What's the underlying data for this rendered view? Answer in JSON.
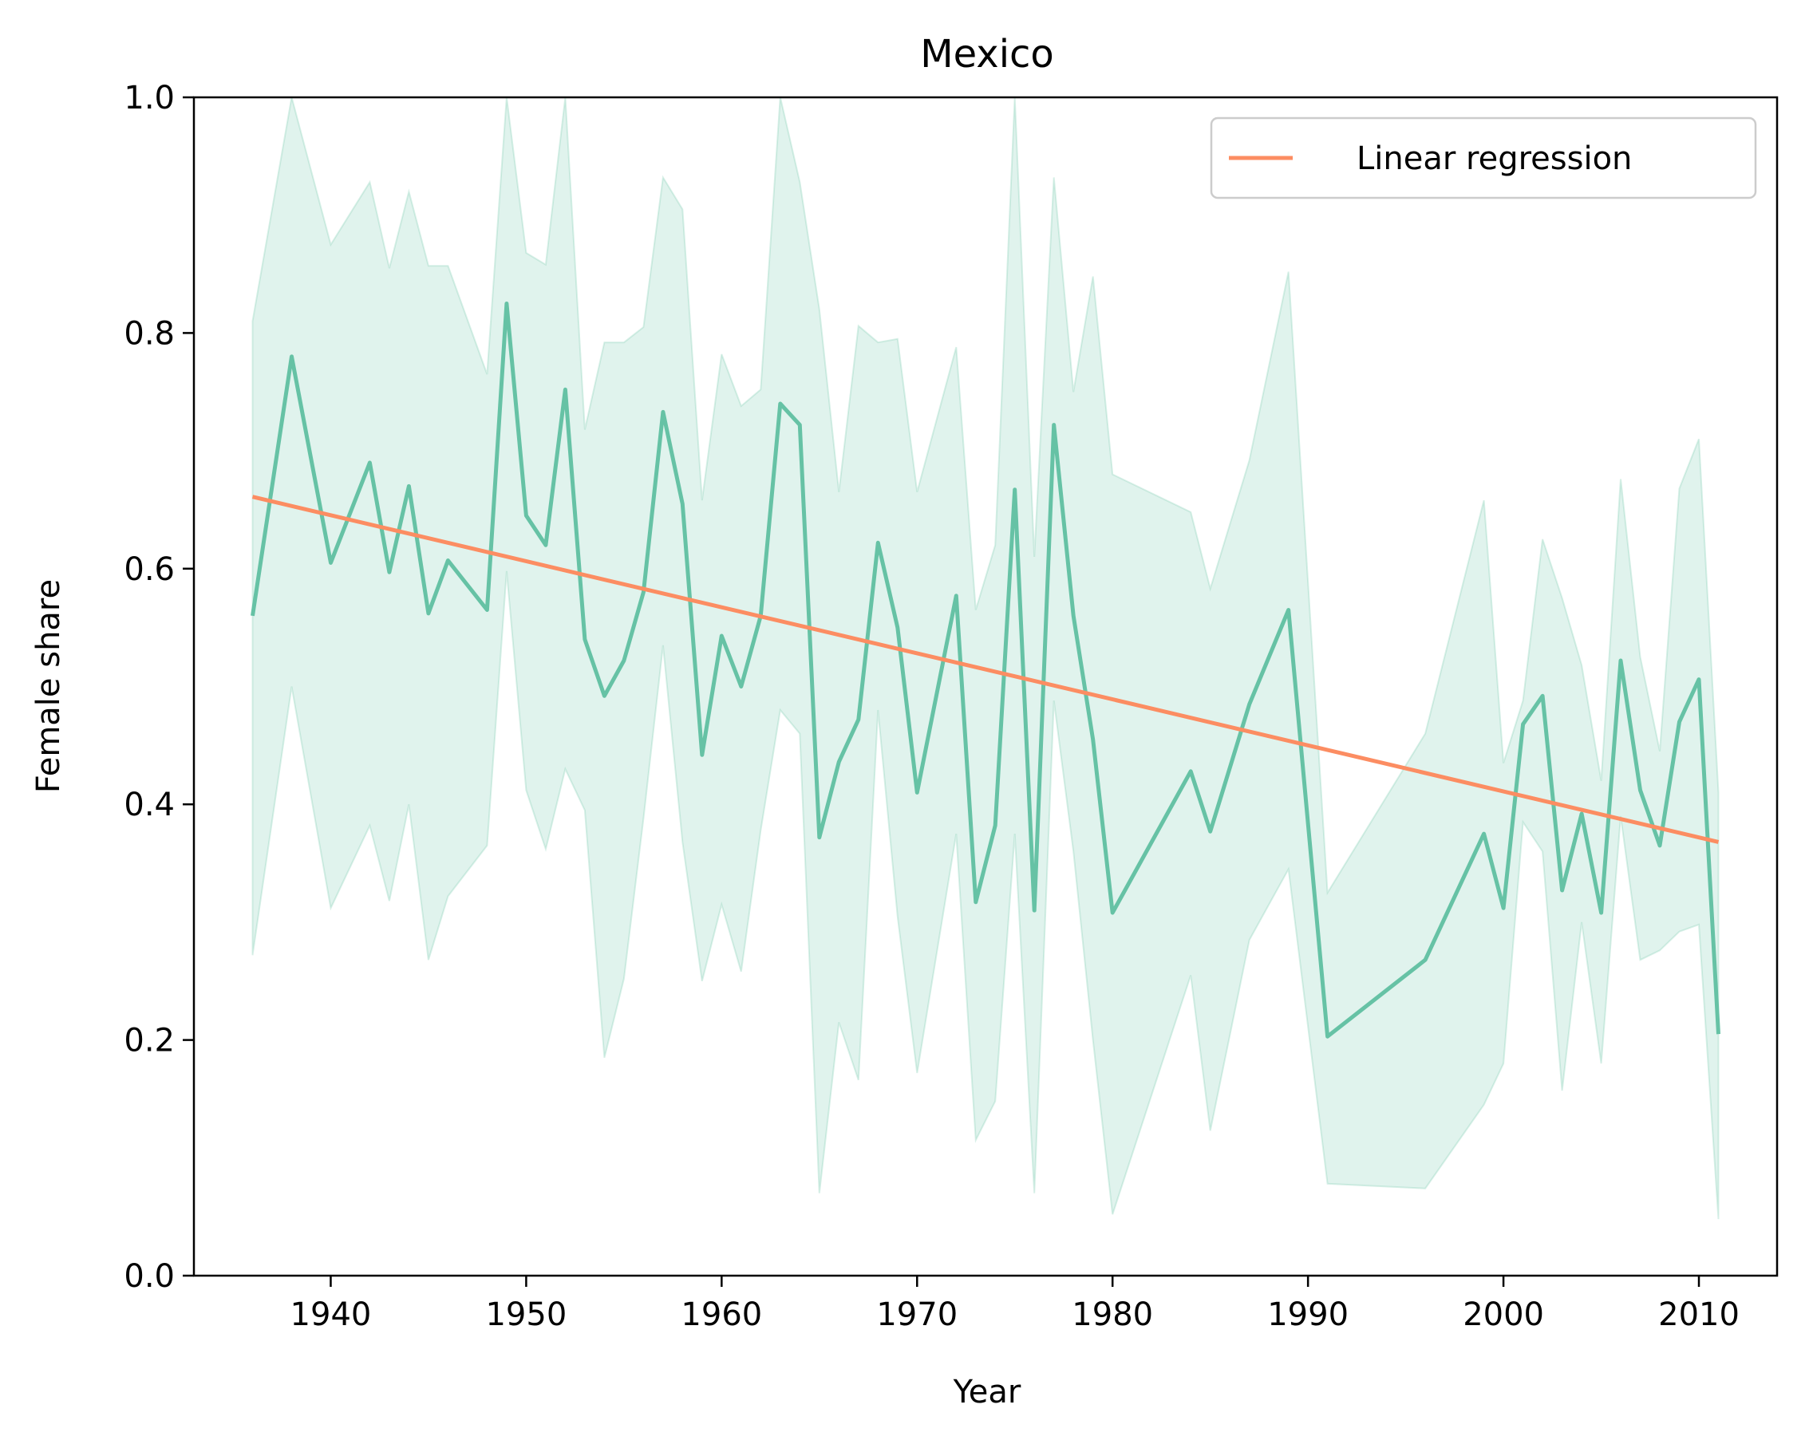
{
  "chart_data": {
    "type": "line",
    "title": "Mexico",
    "xlabel": "Year",
    "ylabel": "Female share",
    "xlim": [
      1933,
      2014
    ],
    "ylim": [
      0,
      1
    ],
    "xticks": [
      1940,
      1950,
      1960,
      1970,
      1980,
      1990,
      2000,
      2010
    ],
    "yticks": [
      "0.0",
      "0.2",
      "0.4",
      "0.6",
      "0.8",
      "1.0"
    ],
    "legend_position": "top-right",
    "colors": {
      "series": "#66c2a5",
      "band": "#66c2a5",
      "regression": "#fc8d62",
      "ylabel": "#66c2a5"
    },
    "series": [
      {
        "x": [
          1936,
          1938,
          1940,
          1942,
          1943,
          1944,
          1945,
          1946,
          1948,
          1949,
          1950,
          1951,
          1952,
          1953,
          1954,
          1955,
          1956,
          1957,
          1958,
          1959,
          1960,
          1961,
          1962,
          1963,
          1964,
          1965,
          1966,
          1967,
          1968,
          1969,
          1970,
          1972,
          1973,
          1974,
          1975,
          1976,
          1977,
          1978,
          1979,
          1980,
          1984,
          1985,
          1987,
          1989,
          1991,
          1996,
          1999,
          2000,
          2001,
          2002,
          2003,
          2004,
          2005,
          2006,
          2007,
          2008,
          2009,
          2010,
          2011
        ],
        "y": [
          0.56,
          0.78,
          0.605,
          0.69,
          0.597,
          0.67,
          0.562,
          0.607,
          0.565,
          0.825,
          0.645,
          0.62,
          0.752,
          0.54,
          0.492,
          0.522,
          0.58,
          0.733,
          0.655,
          0.442,
          0.543,
          0.5,
          0.56,
          0.74,
          0.722,
          0.372,
          0.436,
          0.472,
          0.622,
          0.55,
          0.41,
          0.577,
          0.317,
          0.382,
          0.667,
          0.31,
          0.722,
          0.56,
          0.455,
          0.308,
          0.428,
          0.377,
          0.485,
          0.565,
          0.203,
          0.268,
          0.375,
          0.312,
          0.468,
          0.492,
          0.327,
          0.392,
          0.308,
          0.522,
          0.412,
          0.365,
          0.47,
          0.506,
          0.205
        ],
        "upper": [
          0.81,
          1.0,
          0.875,
          0.928,
          0.855,
          0.92,
          0.857,
          0.857,
          0.765,
          1.0,
          0.868,
          0.858,
          1.0,
          0.718,
          0.792,
          0.792,
          0.805,
          0.932,
          0.905,
          0.658,
          0.782,
          0.738,
          0.752,
          1.0,
          0.928,
          0.82,
          0.665,
          0.806,
          0.792,
          0.795,
          0.665,
          0.788,
          0.565,
          0.62,
          1.0,
          0.61,
          0.932,
          0.75,
          0.848,
          0.68,
          0.648,
          0.583,
          0.692,
          0.852,
          0.325,
          0.46,
          0.658,
          0.435,
          0.488,
          0.625,
          0.575,
          0.518,
          0.42,
          0.676,
          0.525,
          0.445,
          0.668,
          0.71,
          0.41
        ],
        "lower": [
          0.272,
          0.5,
          0.312,
          0.382,
          0.318,
          0.4,
          0.268,
          0.322,
          0.365,
          0.598,
          0.412,
          0.362,
          0.43,
          0.395,
          0.185,
          0.252,
          0.388,
          0.535,
          0.368,
          0.25,
          0.315,
          0.258,
          0.378,
          0.48,
          0.46,
          0.07,
          0.215,
          0.166,
          0.48,
          0.305,
          0.172,
          0.375,
          0.115,
          0.148,
          0.375,
          0.07,
          0.488,
          0.36,
          0.2,
          0.052,
          0.255,
          0.123,
          0.285,
          0.345,
          0.078,
          0.074,
          0.145,
          0.18,
          0.385,
          0.36,
          0.157,
          0.3,
          0.18,
          0.39,
          0.268,
          0.276,
          0.292,
          0.298,
          0.048
        ]
      },
      {
        "name": "Linear regression",
        "x": [
          1936,
          2011
        ],
        "y": [
          0.661,
          0.368
        ]
      }
    ]
  }
}
